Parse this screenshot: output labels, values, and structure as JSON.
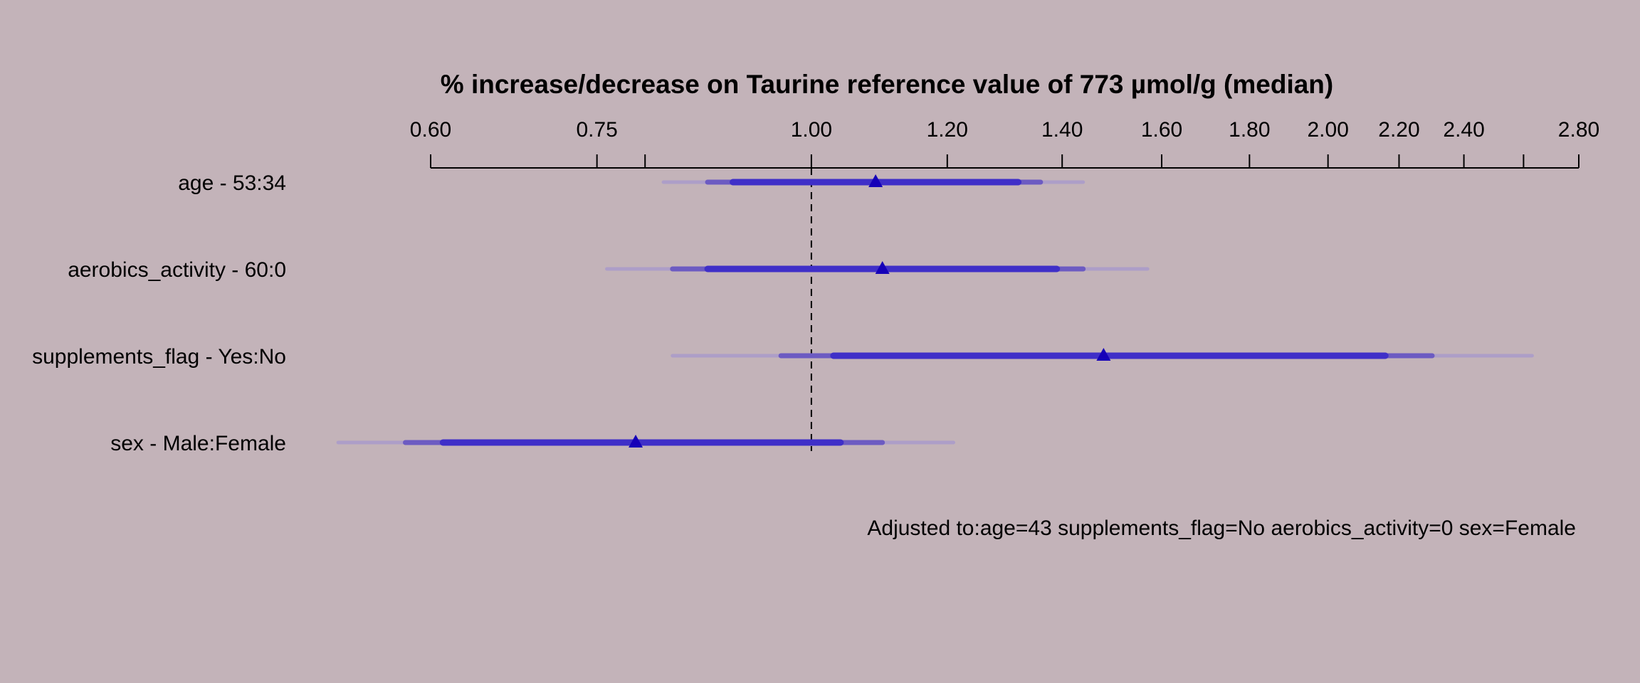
{
  "chart_data": {
    "type": "forest",
    "title": "% increase/decrease on Taurine reference value of 773 µmol/g (median)",
    "axis": {
      "scale": "log",
      "xlim": [
        0.6,
        2.8
      ],
      "ticks": [
        0.6,
        0.75,
        0.8,
        1.0,
        1.2,
        1.4,
        1.6,
        1.8,
        2.0,
        2.2,
        2.4,
        2.6,
        2.8
      ],
      "tick_labels": [
        "0.60",
        "0.75",
        "",
        "1.00",
        "1.20",
        "1.40",
        "1.60",
        "1.80",
        "2.00",
        "2.20",
        "2.40",
        "",
        "2.80"
      ],
      "reference_line": 1.0
    },
    "rows": [
      {
        "label": "age - 53:34",
        "estimate": 1.09,
        "ci_narrow": [
          0.9,
          1.32
        ],
        "ci_mid": [
          0.87,
          1.36
        ],
        "ci_wide": [
          0.82,
          1.44
        ]
      },
      {
        "label": "aerobics_activity - 60:0",
        "estimate": 1.1,
        "ci_narrow": [
          0.87,
          1.39
        ],
        "ci_mid": [
          0.83,
          1.44
        ],
        "ci_wide": [
          0.76,
          1.57
        ]
      },
      {
        "label": "supplements_flag - Yes:No",
        "estimate": 1.48,
        "ci_narrow": [
          1.03,
          2.16
        ],
        "ci_mid": [
          0.96,
          2.3
        ],
        "ci_wide": [
          0.83,
          2.63
        ]
      },
      {
        "label": "sex - Male:Female",
        "estimate": 0.79,
        "ci_narrow": [
          0.61,
          1.04
        ],
        "ci_mid": [
          0.58,
          1.1
        ],
        "ci_wide": [
          0.53,
          1.21
        ]
      }
    ],
    "colors": {
      "background": "#c3b3b9",
      "narrow": "#3f2fc8",
      "mid": "#6c5bc2",
      "wide": "#ad9ec8",
      "marker": "#1500b8"
    },
    "annotation": "Adjusted to:age=43 supplements_flag=No aerobics_activity=0 sex=Female"
  }
}
